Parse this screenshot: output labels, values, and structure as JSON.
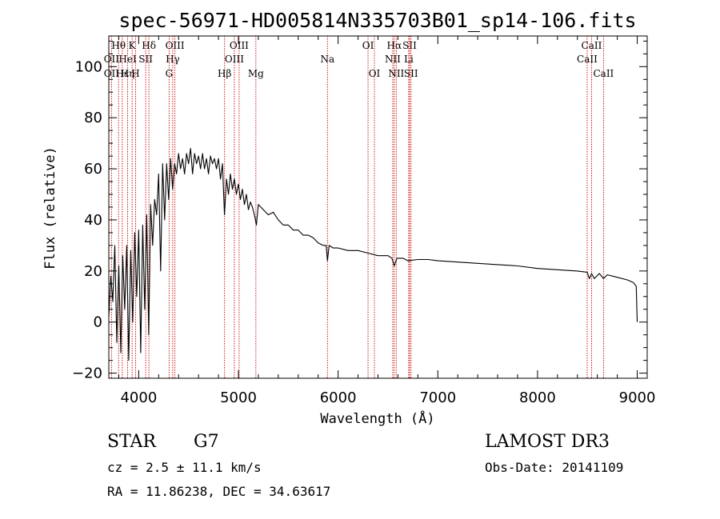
{
  "chart_data": {
    "type": "line",
    "title": "spec-56971-HD005814N335703B01_sp14-106.fits",
    "xlabel": "Wavelength (Å)",
    "ylabel": "Flux (relative)",
    "xlim": [
      3700,
      9100
    ],
    "ylim": [
      -22,
      112
    ],
    "xticks": [
      4000,
      5000,
      6000,
      7000,
      8000,
      9000
    ],
    "yticks": [
      -20,
      0,
      20,
      40,
      60,
      80,
      100
    ],
    "line_color": "#000000",
    "marker_color": "#cc0000",
    "series": [
      {
        "name": "flux",
        "x": [
          3700,
          3720,
          3740,
          3760,
          3780,
          3800,
          3820,
          3840,
          3860,
          3880,
          3900,
          3920,
          3940,
          3960,
          3980,
          4000,
          4020,
          4040,
          4060,
          4080,
          4100,
          4120,
          4140,
          4160,
          4180,
          4200,
          4220,
          4240,
          4260,
          4280,
          4300,
          4320,
          4340,
          4360,
          4380,
          4400,
          4420,
          4440,
          4460,
          4480,
          4500,
          4520,
          4540,
          4560,
          4580,
          4600,
          4620,
          4640,
          4660,
          4680,
          4700,
          4720,
          4740,
          4760,
          4780,
          4800,
          4820,
          4840,
          4860,
          4880,
          4900,
          4920,
          4940,
          4960,
          4980,
          5000,
          5020,
          5040,
          5060,
          5080,
          5100,
          5120,
          5140,
          5160,
          5180,
          5200,
          5250,
          5300,
          5350,
          5400,
          5450,
          5500,
          5550,
          5600,
          5650,
          5700,
          5750,
          5800,
          5850,
          5880,
          5893,
          5910,
          5950,
          6000,
          6100,
          6200,
          6300,
          6400,
          6500,
          6540,
          6563,
          6590,
          6650,
          6700,
          6800,
          6900,
          7000,
          7200,
          7400,
          7600,
          7800,
          8000,
          8200,
          8400,
          8498,
          8520,
          8542,
          8570,
          8620,
          8662,
          8700,
          8800,
          8900,
          8960,
          8990,
          9000
        ],
        "values": [
          2,
          18,
          8,
          30,
          -8,
          22,
          -12,
          26,
          5,
          30,
          -15,
          28,
          0,
          35,
          10,
          36,
          -12,
          38,
          5,
          42,
          -5,
          46,
          30,
          48,
          42,
          58,
          20,
          62,
          40,
          62,
          48,
          64,
          52,
          62,
          58,
          66,
          60,
          64,
          58,
          66,
          62,
          68,
          58,
          66,
          62,
          65,
          60,
          66,
          60,
          64,
          58,
          65,
          62,
          64,
          60,
          64,
          56,
          62,
          42,
          56,
          50,
          58,
          52,
          56,
          50,
          54,
          48,
          52,
          46,
          50,
          44,
          47,
          45,
          42,
          38,
          46,
          44,
          42,
          43,
          40,
          38,
          38,
          36,
          36,
          34,
          34,
          33,
          31,
          30,
          30,
          24,
          30,
          29,
          29,
          28,
          28,
          27,
          26,
          26,
          25,
          22,
          25,
          25,
          24,
          24.5,
          24.5,
          24,
          23.5,
          23,
          22.5,
          22,
          21,
          20.5,
          20,
          19.5,
          17,
          19,
          17,
          19,
          17,
          18.5,
          17.5,
          16.5,
          15.5,
          14,
          0
        ]
      }
    ],
    "lines": [
      {
        "label": "Hθ",
        "wave": 3798,
        "row": 1
      },
      {
        "label": "OII",
        "wave": 3727,
        "row": 2
      },
      {
        "label": "OII",
        "wave": 3727,
        "row": 3
      },
      {
        "label": "Hε",
        "wave": 3835,
        "row": 3
      },
      {
        "label": "Hη",
        "wave": 3889,
        "row": 3
      },
      {
        "label": "HeI",
        "wave": 3889,
        "row": 2
      },
      {
        "label": "K",
        "wave": 3934,
        "row": 1
      },
      {
        "label": "H",
        "wave": 3969,
        "row": 3
      },
      {
        "label": "SII",
        "wave": 4070,
        "row": 2
      },
      {
        "label": "Hδ",
        "wave": 4102,
        "row": 1
      },
      {
        "label": "OIII",
        "wave": 4363,
        "row": 1
      },
      {
        "label": "Hγ",
        "wave": 4341,
        "row": 2
      },
      {
        "label": "G",
        "wave": 4305,
        "row": 3
      },
      {
        "label": "Hβ",
        "wave": 4861,
        "row": 3
      },
      {
        "label": "OIII",
        "wave": 5007,
        "row": 1
      },
      {
        "label": "OIII",
        "wave": 4959,
        "row": 2
      },
      {
        "label": "Mg",
        "wave": 5175,
        "row": 3
      },
      {
        "label": "Na",
        "wave": 5893,
        "row": 2
      },
      {
        "label": "OI",
        "wave": 6300,
        "row": 1
      },
      {
        "label": "OI",
        "wave": 6364,
        "row": 3
      },
      {
        "label": "Hα",
        "wave": 6563,
        "row": 1
      },
      {
        "label": "NII",
        "wave": 6548,
        "row": 2
      },
      {
        "label": "NII",
        "wave": 6583,
        "row": 3
      },
      {
        "label": "SII",
        "wave": 6717,
        "row": 1
      },
      {
        "label": "Li",
        "wave": 6708,
        "row": 2
      },
      {
        "label": "SII",
        "wave": 6731,
        "row": 3
      },
      {
        "label": "CaII",
        "wave": 8542,
        "row": 1
      },
      {
        "label": "CaII",
        "wave": 8498,
        "row": 2
      },
      {
        "label": "CaII",
        "wave": 8662,
        "row": 3
      }
    ]
  },
  "info": {
    "object_class": "STAR",
    "subclass": "G7",
    "survey": "LAMOST DR3",
    "cz": "cz = 2.5 ± 11.1 km/s",
    "obs_date": "Obs-Date: 20141109",
    "radec": "RA =  11.86238, DEC =  34.63617"
  }
}
